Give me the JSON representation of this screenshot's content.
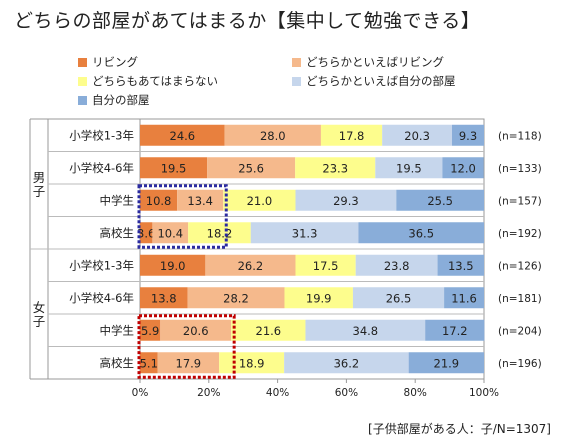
{
  "title": "どちらの部屋があてはまるか【集中して勉強できる】",
  "source_note": "[子供部屋がある人：子/N=1307]",
  "chart_data": {
    "type": "bar",
    "orientation": "horizontal",
    "stacked": true,
    "xlim": [
      0,
      100
    ],
    "x_ticks": [
      "0%",
      "20%",
      "40%",
      "60%",
      "80%",
      "100%"
    ],
    "series": [
      {
        "name": "リビング",
        "color": "#E8803E"
      },
      {
        "name": "どちらかといえばリビング",
        "color": "#F5B98C"
      },
      {
        "name": "どちらもあてはまらない",
        "color": "#FDFD8D"
      },
      {
        "name": "どちらかといえば自分の部屋",
        "color": "#C6D6EC"
      },
      {
        "name": "自分の部屋",
        "color": "#89ADD9"
      }
    ],
    "groups": [
      {
        "label": "男子",
        "rows": [
          {
            "label": "小学校1-3年",
            "n": "(n=118)",
            "values": [
              24.6,
              28.0,
              17.8,
              20.3,
              9.3
            ]
          },
          {
            "label": "小学校4-6年",
            "n": "(n=133)",
            "values": [
              19.5,
              25.6,
              23.3,
              19.5,
              12.0
            ]
          },
          {
            "label": "中学生",
            "n": "(n=157)",
            "values": [
              10.8,
              13.4,
              21.0,
              29.3,
              25.5
            ]
          },
          {
            "label": "高校生",
            "n": "(n=192)",
            "values": [
              3.6,
              10.4,
              18.2,
              31.3,
              36.5
            ]
          }
        ]
      },
      {
        "label": "女子",
        "rows": [
          {
            "label": "小学校1-3年",
            "n": "(n=126)",
            "values": [
              19.0,
              26.2,
              17.5,
              23.8,
              13.5
            ]
          },
          {
            "label": "小学校4-6年",
            "n": "(n=181)",
            "values": [
              13.8,
              28.2,
              19.9,
              26.5,
              11.6
            ]
          },
          {
            "label": "中学生",
            "n": "(n=204)",
            "values": [
              5.9,
              20.6,
              21.6,
              34.8,
              17.2
            ]
          },
          {
            "label": "高校生",
            "n": "(n=196)",
            "values": [
              5.1,
              17.9,
              18.9,
              36.2,
              21.9
            ]
          }
        ]
      }
    ],
    "annotations": [
      {
        "type": "dotted-box",
        "color": "#2B2BA0",
        "group": 0,
        "rows": [
          2,
          3
        ],
        "segments": [
          0,
          1
        ]
      },
      {
        "type": "dotted-box",
        "color": "#C00000",
        "group": 1,
        "rows": [
          2,
          3
        ],
        "segments": [
          0,
          1
        ]
      }
    ]
  }
}
